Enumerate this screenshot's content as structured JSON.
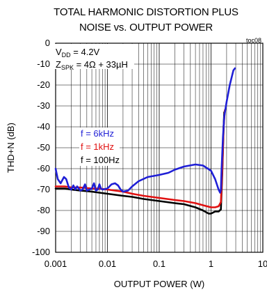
{
  "chart_data": {
    "type": "line",
    "title": [
      "TOTAL HARMONIC DISTORTION PLUS",
      "NOISE vs. OUTPUT POWER"
    ],
    "figure_id": "toc08",
    "xlabel": "OUTPUT POWER (W)",
    "ylabel": "THD+N (dB)",
    "x_scale": "log",
    "xlim": [
      0.001,
      10
    ],
    "ylim": [
      -100,
      0
    ],
    "x_ticks": [
      "0.001",
      "0.01",
      "0.1",
      "1",
      "10"
    ],
    "y_ticks": [
      "0",
      "-10",
      "-20",
      "-30",
      "-40",
      "-50",
      "-60",
      "-70",
      "-80",
      "-90",
      "-100"
    ],
    "grid": true,
    "conditions": {
      "vdd": {
        "prefix": "V",
        "sub": "DD",
        "rest": " = 4.2V"
      },
      "zspk": {
        "prefix": "Z",
        "sub": "SPK",
        "rest": " = 4Ω + 33µH"
      }
    },
    "series": [
      {
        "name": "f = 6kHz",
        "color": "#1f1fd6",
        "points": [
          [
            0.001,
            -60
          ],
          [
            0.0011,
            -65
          ],
          [
            0.00125,
            -67
          ],
          [
            0.00145,
            -64
          ],
          [
            0.0016,
            -65
          ],
          [
            0.0018,
            -69
          ],
          [
            0.002,
            -70
          ],
          [
            0.0022,
            -68
          ],
          [
            0.0024,
            -70
          ],
          [
            0.0026,
            -68.5
          ],
          [
            0.003,
            -70.5
          ],
          [
            0.0033,
            -70
          ],
          [
            0.0037,
            -67.5
          ],
          [
            0.004,
            -70.5
          ],
          [
            0.0045,
            -70
          ],
          [
            0.005,
            -69.5
          ],
          [
            0.0055,
            -67
          ],
          [
            0.006,
            -70.5
          ],
          [
            0.0065,
            -70
          ],
          [
            0.007,
            -67.5
          ],
          [
            0.0075,
            -69.5
          ],
          [
            0.008,
            -70
          ],
          [
            0.01,
            -69.5
          ],
          [
            0.012,
            -67.5
          ],
          [
            0.014,
            -67
          ],
          [
            0.016,
            -68
          ],
          [
            0.018,
            -70
          ],
          [
            0.02,
            -71
          ],
          [
            0.025,
            -70.5
          ],
          [
            0.03,
            -68.5
          ],
          [
            0.04,
            -66
          ],
          [
            0.06,
            -64
          ],
          [
            0.1,
            -63
          ],
          [
            0.15,
            -62
          ],
          [
            0.2,
            -60.5
          ],
          [
            0.3,
            -59
          ],
          [
            0.5,
            -58
          ],
          [
            0.7,
            -58.5
          ],
          [
            1.0,
            -61
          ],
          [
            1.2,
            -65
          ],
          [
            1.4,
            -70
          ],
          [
            1.5,
            -71.5
          ],
          [
            1.55,
            -70
          ],
          [
            1.6,
            -60
          ],
          [
            1.7,
            -45
          ],
          [
            1.8,
            -35
          ],
          [
            2.0,
            -28
          ],
          [
            2.3,
            -20
          ],
          [
            2.7,
            -13
          ],
          [
            2.9,
            -12
          ]
        ]
      },
      {
        "name": "f = 1kHz",
        "color": "#e01010",
        "points": [
          [
            0.001,
            -68.5
          ],
          [
            0.0015,
            -68.5
          ],
          [
            0.002,
            -69
          ],
          [
            0.003,
            -69
          ],
          [
            0.005,
            -69.5
          ],
          [
            0.007,
            -69.5
          ],
          [
            0.01,
            -70
          ],
          [
            0.02,
            -71
          ],
          [
            0.03,
            -72
          ],
          [
            0.05,
            -73
          ],
          [
            0.1,
            -74
          ],
          [
            0.2,
            -75
          ],
          [
            0.3,
            -75.5
          ],
          [
            0.5,
            -76.5
          ],
          [
            0.7,
            -77.5
          ],
          [
            1.0,
            -78.5
          ],
          [
            1.2,
            -78.5
          ],
          [
            1.4,
            -78
          ],
          [
            1.55,
            -76
          ],
          [
            1.65,
            -60
          ],
          [
            1.75,
            -40
          ],
          [
            1.85,
            -32
          ]
        ]
      },
      {
        "name": "f = 100Hz",
        "color": "#000000",
        "points": [
          [
            0.001,
            -69.5
          ],
          [
            0.0015,
            -69.5
          ],
          [
            0.002,
            -70
          ],
          [
            0.003,
            -70.5
          ],
          [
            0.005,
            -71
          ],
          [
            0.007,
            -71.5
          ],
          [
            0.01,
            -72
          ],
          [
            0.02,
            -73
          ],
          [
            0.03,
            -73.5
          ],
          [
            0.05,
            -74.5
          ],
          [
            0.1,
            -75.5
          ],
          [
            0.2,
            -76.5
          ],
          [
            0.3,
            -77
          ],
          [
            0.5,
            -78.5
          ],
          [
            0.7,
            -80
          ],
          [
            0.9,
            -81.5
          ],
          [
            1.0,
            -81.5
          ],
          [
            1.2,
            -80.5
          ],
          [
            1.4,
            -80.5
          ],
          [
            1.55,
            -79.5
          ],
          [
            1.65,
            -62
          ],
          [
            1.75,
            -40
          ],
          [
            1.8,
            -33
          ]
        ]
      }
    ]
  }
}
